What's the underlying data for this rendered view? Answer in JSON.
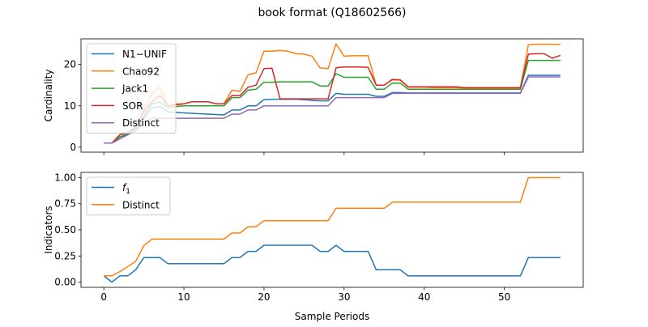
{
  "figure": {
    "title": "book format (Q18602566)"
  },
  "chart_data": [
    {
      "type": "line",
      "ylabel": "Cardinality",
      "xlabel": "",
      "xlim": [
        -2.85,
        59.85
      ],
      "ylim": [
        -1.2,
        26.2
      ],
      "xticks": [
        0,
        10,
        20,
        30,
        40,
        50
      ],
      "yticks": [
        0,
        10,
        20
      ],
      "ytick_labels": [
        "0",
        "10",
        "20"
      ],
      "xticklabels_visible": false,
      "grid": false,
      "legend": "top-left",
      "x": [
        0,
        1,
        2,
        3,
        4,
        5,
        6,
        7,
        8,
        9,
        10,
        11,
        12,
        13,
        14,
        15,
        16,
        17,
        18,
        19,
        20,
        21,
        22,
        23,
        24,
        25,
        26,
        27,
        28,
        29,
        30,
        31,
        32,
        33,
        34,
        35,
        36,
        37,
        38,
        39,
        40,
        41,
        42,
        43,
        44,
        45,
        46,
        47,
        48,
        49,
        50,
        51,
        52,
        53,
        54,
        55,
        56,
        57
      ],
      "series": [
        {
          "name": "N1−UNIF",
          "color": "#1f77b4",
          "values": [
            1,
            1,
            2.5,
            3,
            4.5,
            7,
            9.5,
            9.8,
            8.5,
            8.4,
            8.3,
            8.2,
            8.1,
            8,
            7.9,
            7.8,
            9,
            9,
            10,
            10,
            11.5,
            11.6,
            11.6,
            11.6,
            11.6,
            11.5,
            11.3,
            11.2,
            11.2,
            13,
            12.8,
            12.8,
            12.8,
            12.8,
            12.3,
            12.3,
            13.2,
            13.2,
            13.1,
            13.1,
            13.1,
            13.1,
            13.1,
            13.1,
            13.1,
            13.1,
            13.1,
            13.1,
            13.1,
            13.1,
            13.1,
            13.1,
            13.1,
            17.4,
            17.4,
            17.4,
            17.4,
            17.4
          ]
        },
        {
          "name": "Chao92",
          "color": "#ff7f0e",
          "values": [
            1,
            1,
            3,
            3.5,
            5,
            9,
            13,
            14.5,
            10,
            10.5,
            10.5,
            11,
            11,
            11,
            10.5,
            10.5,
            13.8,
            13.5,
            17.5,
            18,
            23.2,
            23.2,
            23.4,
            23.2,
            22.6,
            22.5,
            22,
            19.2,
            19,
            25,
            22,
            22.1,
            22.1,
            22.1,
            15,
            15,
            16.3,
            16.2,
            14.5,
            14.5,
            14.5,
            14.4,
            14.4,
            14.4,
            14.4,
            14.3,
            14.3,
            14.3,
            14.3,
            14.3,
            14.3,
            14.3,
            14.3,
            24.8,
            24.9,
            24.9,
            24.9,
            24.8
          ]
        },
        {
          "name": "Jack1",
          "color": "#2ca02c",
          "values": [
            1,
            1,
            2.5,
            3.2,
            4.5,
            7.5,
            10.5,
            11,
            9.5,
            9.8,
            10,
            10,
            10,
            10,
            10,
            10,
            12,
            12,
            13.8,
            14,
            15.7,
            15.7,
            15.8,
            15.8,
            15.8,
            15.8,
            15.8,
            14.8,
            14.8,
            17.8,
            16.9,
            16.9,
            16.9,
            16.9,
            14,
            14,
            15.5,
            15.5,
            14,
            14,
            14,
            14,
            14,
            14,
            14,
            14,
            14,
            14,
            14,
            14,
            14,
            14,
            14,
            21,
            21,
            21,
            21,
            21
          ]
        },
        {
          "name": "SOR",
          "color": "#d62728",
          "values": [
            1,
            1,
            3,
            3.5,
            5,
            8.5,
            11,
            12.5,
            10,
            10.2,
            10.5,
            11,
            11,
            11,
            10.5,
            10.5,
            12.5,
            12.5,
            14.5,
            15,
            19,
            19.1,
            11.7,
            11.7,
            11.7,
            11.7,
            11.7,
            11.7,
            11.7,
            19.2,
            19.4,
            19.4,
            19.4,
            19.3,
            15,
            15,
            16.4,
            16.3,
            14.6,
            14.6,
            14.6,
            14.6,
            14.6,
            14.6,
            14.6,
            14.4,
            14.4,
            14.4,
            14.4,
            14.4,
            14.4,
            14.4,
            14.4,
            22.5,
            22.6,
            22.6,
            21.5,
            22.2
          ]
        },
        {
          "name": "Distinct",
          "color": "#9467bd",
          "values": [
            1,
            1,
            2,
            3,
            4,
            6,
            7,
            7,
            7,
            7,
            7,
            7,
            7,
            7,
            7,
            7,
            8,
            8,
            9,
            9,
            10,
            10,
            10,
            10,
            10,
            10,
            10,
            10,
            10,
            12,
            12,
            12,
            12,
            12,
            12,
            12,
            13,
            13,
            13,
            13,
            13,
            13,
            13,
            13,
            13,
            13,
            13,
            13,
            13,
            13,
            13,
            13,
            13,
            17,
            17,
            17,
            17,
            17
          ]
        }
      ]
    },
    {
      "type": "line",
      "ylabel": "Indicators",
      "xlabel": "Sample Periods",
      "xlim": [
        -2.85,
        59.85
      ],
      "ylim": [
        -0.05,
        1.05
      ],
      "xticks": [
        0,
        10,
        20,
        30,
        40,
        50
      ],
      "xtick_labels": [
        "0",
        "10",
        "20",
        "30",
        "40",
        "50"
      ],
      "yticks": [
        0,
        0.25,
        0.5,
        0.75,
        1.0
      ],
      "ytick_labels": [
        "0.00",
        "0.25",
        "0.50",
        "0.75",
        "1.00"
      ],
      "grid": false,
      "legend": "top-left",
      "x": [
        0,
        1,
        2,
        3,
        4,
        5,
        6,
        7,
        8,
        9,
        10,
        11,
        12,
        13,
        14,
        15,
        16,
        17,
        18,
        19,
        20,
        21,
        22,
        23,
        24,
        25,
        26,
        27,
        28,
        29,
        30,
        31,
        32,
        33,
        34,
        35,
        36,
        37,
        38,
        39,
        40,
        41,
        42,
        43,
        44,
        45,
        46,
        47,
        48,
        49,
        50,
        51,
        52,
        53,
        54,
        55,
        56,
        57
      ],
      "series": [
        {
          "name": "f1",
          "name_base": "f",
          "name_sub": "1",
          "color": "#1f77b4",
          "values": [
            0.06,
            0,
            0.06,
            0.06,
            0.12,
            0.235,
            0.235,
            0.235,
            0.176,
            0.176,
            0.176,
            0.176,
            0.176,
            0.176,
            0.176,
            0.176,
            0.235,
            0.235,
            0.294,
            0.294,
            0.353,
            0.353,
            0.353,
            0.353,
            0.353,
            0.353,
            0.353,
            0.294,
            0.294,
            0.353,
            0.294,
            0.294,
            0.294,
            0.294,
            0.118,
            0.118,
            0.118,
            0.118,
            0.059,
            0.059,
            0.059,
            0.059,
            0.059,
            0.059,
            0.059,
            0.059,
            0.059,
            0.059,
            0.059,
            0.059,
            0.059,
            0.059,
            0.059,
            0.235,
            0.235,
            0.235,
            0.235,
            0.235
          ]
        },
        {
          "name": "Distinct",
          "color": "#ff7f0e",
          "values": [
            0.06,
            0.06,
            0.1,
            0.15,
            0.2,
            0.35,
            0.412,
            0.412,
            0.412,
            0.412,
            0.412,
            0.412,
            0.412,
            0.412,
            0.412,
            0.412,
            0.47,
            0.47,
            0.53,
            0.53,
            0.588,
            0.588,
            0.588,
            0.588,
            0.588,
            0.588,
            0.588,
            0.588,
            0.588,
            0.706,
            0.706,
            0.706,
            0.706,
            0.706,
            0.706,
            0.706,
            0.765,
            0.765,
            0.765,
            0.765,
            0.765,
            0.765,
            0.765,
            0.765,
            0.765,
            0.765,
            0.765,
            0.765,
            0.765,
            0.765,
            0.765,
            0.765,
            0.765,
            1,
            1,
            1,
            1,
            1
          ]
        }
      ]
    }
  ]
}
